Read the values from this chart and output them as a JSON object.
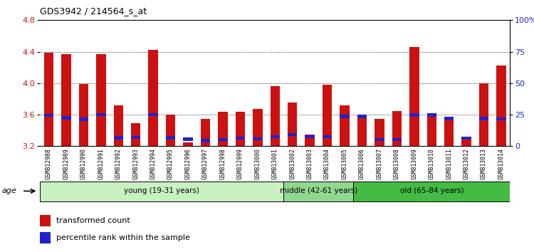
{
  "title": "GDS3942 / 214564_s_at",
  "samples": [
    "GSM812988",
    "GSM812989",
    "GSM812990",
    "GSM812991",
    "GSM812992",
    "GSM812993",
    "GSM812994",
    "GSM812995",
    "GSM812996",
    "GSM812997",
    "GSM812998",
    "GSM812999",
    "GSM813000",
    "GSM813001",
    "GSM813002",
    "GSM813003",
    "GSM813004",
    "GSM813005",
    "GSM813006",
    "GSM813007",
    "GSM813008",
    "GSM813009",
    "GSM813010",
    "GSM813011",
    "GSM813012",
    "GSM813013",
    "GSM813014"
  ],
  "red_values": [
    4.385,
    4.37,
    3.985,
    4.372,
    3.718,
    3.49,
    4.425,
    3.598,
    3.248,
    3.548,
    3.635,
    3.64,
    3.675,
    3.96,
    3.75,
    3.348,
    3.98,
    3.718,
    3.57,
    3.548,
    3.648,
    4.462,
    3.598,
    3.575,
    3.28,
    3.998,
    4.22
  ],
  "blue_values": [
    3.59,
    3.56,
    3.54,
    3.6,
    3.308,
    3.31,
    3.6,
    3.305,
    3.29,
    3.27,
    3.285,
    3.3,
    3.295,
    3.32,
    3.348,
    3.322,
    3.318,
    3.578,
    3.578,
    3.285,
    3.282,
    3.598,
    3.598,
    3.55,
    3.3,
    3.55,
    3.548
  ],
  "groups": [
    {
      "label": "young (19-31 years)",
      "start": 0,
      "end": 14,
      "color": "#c8f0c0"
    },
    {
      "label": "middle (42-61 years)",
      "start": 14,
      "end": 18,
      "color": "#90d890"
    },
    {
      "label": "old (65-84 years)",
      "start": 18,
      "end": 27,
      "color": "#44bb44"
    }
  ],
  "y_min": 3.2,
  "y_max": 4.8,
  "y_ticks": [
    3.2,
    3.6,
    4.0,
    4.4,
    4.8
  ],
  "y2_ticks": [
    0,
    25,
    50,
    75,
    100
  ],
  "y2_labels": [
    "0",
    "25",
    "50",
    "75",
    "100%"
  ],
  "bar_color": "#cc1111",
  "blue_color": "#2222cc",
  "left_axis_color": "#cc1111",
  "right_axis_color": "#2222cc",
  "legend_red": "transformed count",
  "legend_blue": "percentile rank within the sample",
  "bar_width": 0.55,
  "plot_bg": "#ffffff",
  "tick_bg": "#d8d8d8"
}
